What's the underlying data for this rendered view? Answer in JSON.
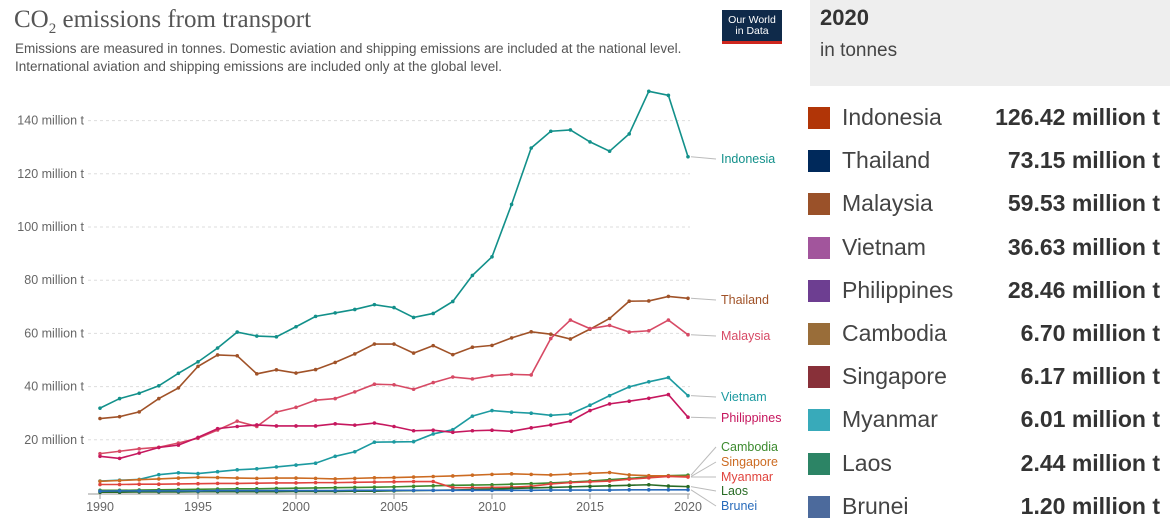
{
  "title_main": "CO",
  "title_sub": "2",
  "title_rest": " emissions from transport",
  "subtitle_line1": "Emissions are measured in tonnes. Domestic aviation and shipping emissions are included at the national level.",
  "subtitle_line2": "International aviation and shipping emissions are included only at the global level.",
  "logo_line1": "Our World",
  "logo_line2": "in Data",
  "panel": {
    "year": "2020",
    "unit": "in tonnes",
    "items": [
      {
        "name": "Indonesia",
        "value": "126.42 million t",
        "color": "#b13507"
      },
      {
        "name": "Thailand",
        "value": "73.15 million t",
        "color": "#00295b"
      },
      {
        "name": "Malaysia",
        "value": "59.53 million t",
        "color": "#9a5129"
      },
      {
        "name": "Vietnam",
        "value": "36.63 million t",
        "color": "#a2559c"
      },
      {
        "name": "Philippines",
        "value": "28.46 million t",
        "color": "#6d3e91"
      },
      {
        "name": "Cambodia",
        "value": "6.70 million t",
        "color": "#996d39"
      },
      {
        "name": "Singapore",
        "value": "6.17 million t",
        "color": "#883039"
      },
      {
        "name": "Myanmar",
        "value": "6.01 million t",
        "color": "#38aaba"
      },
      {
        "name": "Laos",
        "value": "2.44 million t",
        "color": "#2c8465"
      },
      {
        "name": "Brunei",
        "value": "1.20 million t",
        "color": "#4c6a9c"
      }
    ]
  },
  "chart_data": {
    "type": "line",
    "title": "CO2 emissions from transport",
    "xlabel": "",
    "ylabel": "",
    "xlim": [
      1990,
      2020
    ],
    "ylim": [
      0,
      150
    ],
    "yticks": [
      20,
      40,
      60,
      80,
      100,
      120,
      140
    ],
    "ytick_labels": [
      "20 million t",
      "40 million t",
      "60 million t",
      "80 million t",
      "100 million t",
      "120 million t",
      "140 million t"
    ],
    "xticks": [
      1990,
      1995,
      2000,
      2005,
      2010,
      2015,
      2020
    ],
    "xtick_labels": [
      "1990",
      "1995",
      "2000",
      "2005",
      "2010",
      "2015",
      "2020"
    ],
    "x": [
      1990,
      1991,
      1992,
      1993,
      1994,
      1995,
      1996,
      1997,
      1998,
      1999,
      2000,
      2001,
      2002,
      2003,
      2004,
      2005,
      2006,
      2007,
      2008,
      2009,
      2010,
      2011,
      2012,
      2013,
      2014,
      2015,
      2016,
      2017,
      2018,
      2019,
      2020
    ],
    "series": [
      {
        "name": "Indonesia",
        "color": "#12908a",
        "values": [
          31.9,
          35.5,
          37.5,
          40.3,
          45,
          49.3,
          54.5,
          60.5,
          59,
          58.7,
          62.5,
          66.4,
          67.7,
          69,
          70.8,
          69.7,
          66,
          67.5,
          72,
          81.8,
          88.8,
          108.5,
          129.7,
          136,
          136.5,
          132,
          128.5,
          135,
          151,
          149.5,
          126.4
        ]
      },
      {
        "name": "Thailand",
        "color": "#a05228",
        "values": [
          28,
          28.7,
          30.5,
          35.5,
          39.5,
          47.6,
          51.9,
          51.6,
          44.8,
          46.3,
          45.1,
          46.4,
          49.1,
          52.3,
          56,
          56,
          52.6,
          55.4,
          52,
          54.8,
          55.5,
          58.3,
          60.6,
          59.7,
          57.9,
          61.6,
          65.6,
          72.1,
          72.2,
          73.9,
          73.2
        ]
      },
      {
        "name": "Malaysia",
        "color": "#d74a65",
        "values": [
          14.8,
          15.7,
          16.6,
          17.2,
          18.8,
          20.6,
          23.7,
          27,
          25,
          30.4,
          32.2,
          34.9,
          35.5,
          38,
          40.9,
          40.7,
          39,
          41.5,
          43.6,
          42.9,
          44.1,
          44.6,
          44.4,
          58.1,
          65,
          61.8,
          63,
          60.5,
          61,
          65,
          59.5
        ]
      },
      {
        "name": "Vietnam",
        "color": "#1c9aa0",
        "values": [
          4.5,
          4.8,
          5.1,
          6.9,
          7.6,
          7.3,
          8,
          8.7,
          9.1,
          9.8,
          10.5,
          11.2,
          13.8,
          15.5,
          19.1,
          19.2,
          19.3,
          22.2,
          23.8,
          28.9,
          31,
          30.4,
          30,
          29.2,
          29.7,
          33,
          36.6,
          39.9,
          41.8,
          43.4,
          36.6
        ]
      },
      {
        "name": "Philippines",
        "color": "#c6175e",
        "values": [
          13.8,
          13,
          15,
          17.1,
          18,
          20.9,
          24.2,
          25,
          25.6,
          25.2,
          25.2,
          25.2,
          26,
          25.5,
          26.3,
          25,
          23.4,
          23.6,
          22.8,
          23.4,
          23.6,
          23.2,
          24.5,
          25.6,
          27,
          31,
          33.5,
          34.5,
          35.6,
          37,
          28.5
        ]
      },
      {
        "name": "Cambodia",
        "color": "#3c8a2e",
        "values": [
          1,
          1,
          1.1,
          1.2,
          1.3,
          1.4,
          1.5,
          1.6,
          1.6,
          1.7,
          1.8,
          1.9,
          2,
          2.1,
          2.2,
          2.3,
          2.5,
          2.7,
          2.9,
          3,
          3.1,
          3.3,
          3.5,
          3.8,
          4.1,
          4.5,
          5,
          5.5,
          6,
          6.5,
          6.7
        ]
      },
      {
        "name": "Singapore",
        "color": "#cc6b22",
        "values": [
          4.4,
          4.7,
          5,
          5.3,
          5.6,
          5.9,
          5.8,
          5.6,
          5.5,
          5.6,
          5.6,
          5.5,
          5.3,
          5.5,
          5.7,
          5.8,
          6,
          6.2,
          6.4,
          6.7,
          7,
          7.2,
          7,
          6.8,
          7.1,
          7.4,
          7.7,
          6.8,
          6.5,
          6.4,
          6.2
        ]
      },
      {
        "name": "Myanmar",
        "color": "#e0443e",
        "values": [
          3.2,
          3.2,
          3.3,
          3.3,
          3.4,
          3.5,
          3.6,
          3.6,
          3.7,
          3.8,
          3.8,
          3.9,
          3.9,
          4,
          4.1,
          4.2,
          4.3,
          4.3,
          2,
          2,
          2.1,
          2.2,
          2.5,
          3.4,
          3.9,
          4.2,
          4.5,
          5.2,
          5.7,
          6.2,
          6
        ]
      },
      {
        "name": "Laos",
        "color": "#286b25",
        "values": [
          0.3,
          0.3,
          0.4,
          0.4,
          0.4,
          0.5,
          0.5,
          0.5,
          0.5,
          0.5,
          0.6,
          0.6,
          0.6,
          0.7,
          0.7,
          0.8,
          0.9,
          1,
          1.1,
          1.3,
          1.5,
          1.7,
          1.9,
          2.1,
          2.3,
          2.5,
          2.7,
          2.9,
          3.1,
          2.6,
          2.4
        ]
      },
      {
        "name": "Brunei",
        "color": "#286bbb",
        "values": [
          0.7,
          0.8,
          0.8,
          0.8,
          0.8,
          0.8,
          0.9,
          0.9,
          0.9,
          0.9,
          0.9,
          0.9,
          0.9,
          1,
          1,
          1,
          1,
          1,
          1,
          1,
          1,
          1,
          1,
          1.1,
          1.1,
          1.1,
          1.1,
          1.2,
          1.2,
          1.2,
          1.2
        ]
      }
    ]
  }
}
